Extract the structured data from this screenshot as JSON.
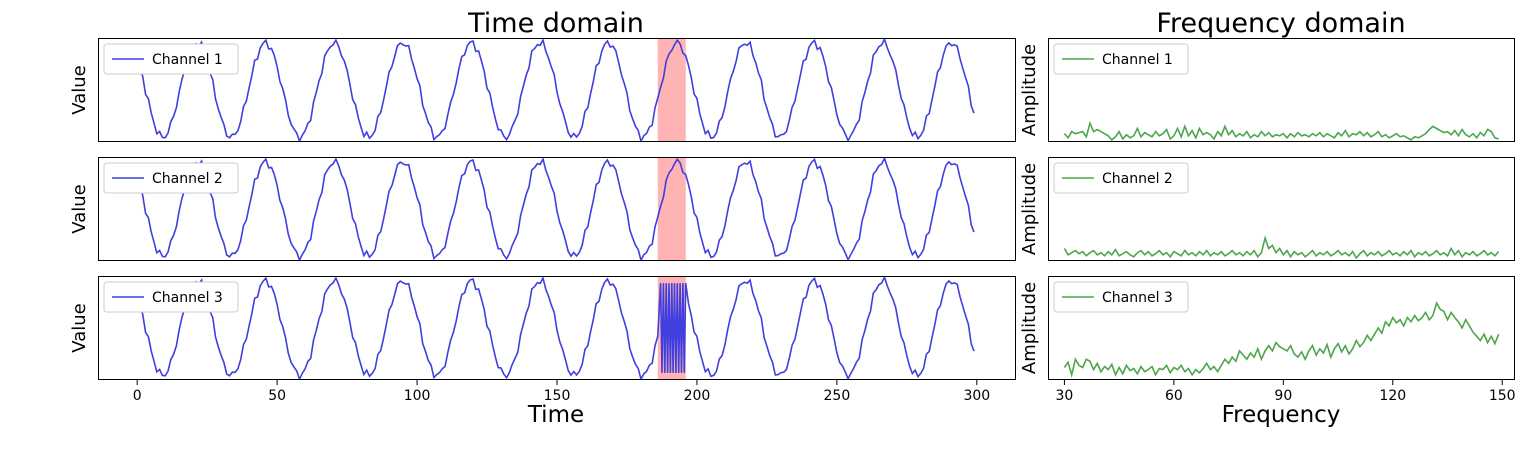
{
  "colors": {
    "time_series": "#3f3fe0",
    "freq_series": "#4ca64c",
    "anomaly_band": "#ff9999"
  },
  "chart_data": [
    {
      "type": "line",
      "panel": "time",
      "title": "Time domain",
      "xlabel": "",
      "ylabel": "Value",
      "xlim": [
        -14,
        314
      ],
      "ylim": [
        -1.1,
        1.1
      ],
      "legend": "top-left",
      "highlight_range": [
        186,
        196
      ],
      "series": [
        {
          "name": "Channel 1",
          "generator": {
            "period": 24.5,
            "amplitude": 1.0,
            "x_end": 299,
            "anomaly": "smooth"
          }
        }
      ]
    },
    {
      "type": "line",
      "panel": "time",
      "title": "",
      "xlabel": "",
      "ylabel": "Value",
      "xlim": [
        -14,
        314
      ],
      "ylim": [
        -1.1,
        1.1
      ],
      "legend": "top-left",
      "highlight_range": [
        186,
        196
      ],
      "series": [
        {
          "name": "Channel 2",
          "generator": {
            "period": 24.5,
            "amplitude": 1.0,
            "x_end": 299,
            "anomaly": "smooth"
          }
        }
      ]
    },
    {
      "type": "line",
      "panel": "time",
      "title": "",
      "xlabel": "Time",
      "ylabel": "Value",
      "xlim": [
        -14,
        314
      ],
      "ylim": [
        -1.1,
        1.1
      ],
      "xticks": [
        0,
        50,
        100,
        150,
        200,
        250,
        300
      ],
      "legend": "top-left",
      "highlight_range": [
        186,
        196
      ],
      "series": [
        {
          "name": "Channel 3",
          "generator": {
            "period": 24.5,
            "amplitude": 1.0,
            "x_end": 299,
            "anomaly": "high-frequency"
          }
        }
      ]
    },
    {
      "type": "line",
      "panel": "freq",
      "title": "Frequency domain",
      "xlabel": "",
      "ylabel": "Amplitude",
      "xlim": [
        25.5,
        153.5
      ],
      "ylim": [
        0,
        1
      ],
      "legend": "top-left",
      "series": [
        {
          "name": "Channel 1",
          "x_start": 30,
          "x_end": 149,
          "values": [
            0.08,
            0.04,
            0.1,
            0.08,
            0.09,
            0.1,
            0.05,
            0.18,
            0.1,
            0.12,
            0.1,
            0.08,
            0.06,
            0.02,
            0.05,
            0.1,
            0.03,
            0.07,
            0.04,
            0.06,
            0.13,
            0.05,
            0.09,
            0.07,
            0.05,
            0.1,
            0.06,
            0.08,
            0.12,
            0.03,
            0.06,
            0.13,
            0.05,
            0.15,
            0.06,
            0.11,
            0.04,
            0.13,
            0.07,
            0.09,
            0.07,
            0.03,
            0.1,
            0.06,
            0.15,
            0.07,
            0.11,
            0.05,
            0.08,
            0.06,
            0.1,
            0.04,
            0.07,
            0.05,
            0.1,
            0.06,
            0.09,
            0.05,
            0.07,
            0.06,
            0.08,
            0.04,
            0.08,
            0.05,
            0.09,
            0.06,
            0.07,
            0.05,
            0.08,
            0.06,
            0.09,
            0.05,
            0.08,
            0.06,
            0.04,
            0.09,
            0.06,
            0.11,
            0.05,
            0.08,
            0.07,
            0.1,
            0.06,
            0.09,
            0.05,
            0.07,
            0.1,
            0.05,
            0.07,
            0.04,
            0.06,
            0.08,
            0.05,
            0.06,
            0.04,
            0.02,
            0.05,
            0.04,
            0.06,
            0.08,
            0.12,
            0.15,
            0.13,
            0.11,
            0.09,
            0.1,
            0.07,
            0.11,
            0.06,
            0.12,
            0.07,
            0.05,
            0.08,
            0.04,
            0.09,
            0.06,
            0.12,
            0.1,
            0.04,
            0.03
          ]
        }
      ]
    },
    {
      "type": "line",
      "panel": "freq",
      "title": "",
      "xlabel": "",
      "ylabel": "Amplitude",
      "xlim": [
        25.5,
        153.5
      ],
      "ylim": [
        0,
        1
      ],
      "legend": "top-left",
      "series": [
        {
          "name": "Channel 2",
          "x_start": 30,
          "x_end": 149,
          "values": [
            0.12,
            0.06,
            0.08,
            0.1,
            0.07,
            0.09,
            0.05,
            0.08,
            0.1,
            0.06,
            0.08,
            0.05,
            0.09,
            0.06,
            0.11,
            0.05,
            0.07,
            0.09,
            0.06,
            0.04,
            0.08,
            0.1,
            0.06,
            0.09,
            0.05,
            0.07,
            0.1,
            0.06,
            0.08,
            0.04,
            0.09,
            0.07,
            0.05,
            0.1,
            0.06,
            0.08,
            0.05,
            0.09,
            0.06,
            0.1,
            0.05,
            0.08,
            0.06,
            0.09,
            0.05,
            0.07,
            0.1,
            0.06,
            0.08,
            0.05,
            0.09,
            0.06,
            0.1,
            0.04,
            0.08,
            0.22,
            0.12,
            0.15,
            0.08,
            0.12,
            0.06,
            0.1,
            0.04,
            0.09,
            0.06,
            0.08,
            0.04,
            0.07,
            0.1,
            0.05,
            0.08,
            0.06,
            0.09,
            0.05,
            0.07,
            0.1,
            0.06,
            0.08,
            0.05,
            0.09,
            0.03,
            0.07,
            0.1,
            0.05,
            0.08,
            0.06,
            0.09,
            0.05,
            0.07,
            0.1,
            0.06,
            0.08,
            0.05,
            0.09,
            0.06,
            0.1,
            0.04,
            0.08,
            0.06,
            0.09,
            0.05,
            0.07,
            0.1,
            0.06,
            0.08,
            0.05,
            0.12,
            0.06,
            0.1,
            0.04,
            0.08,
            0.06,
            0.09,
            0.05,
            0.07,
            0.1,
            0.06,
            0.08,
            0.05,
            0.09
          ]
        }
      ]
    },
    {
      "type": "line",
      "panel": "freq",
      "title": "",
      "xlabel": "Frequency",
      "ylabel": "Amplitude",
      "xlim": [
        25.5,
        153.5
      ],
      "ylim": [
        0,
        1
      ],
      "xticks": [
        30,
        60,
        90,
        120,
        150
      ],
      "legend": "top-left",
      "series": [
        {
          "name": "Channel 3",
          "x_start": 30,
          "x_end": 149,
          "values": [
            0.12,
            0.17,
            0.05,
            0.2,
            0.14,
            0.12,
            0.2,
            0.18,
            0.1,
            0.16,
            0.08,
            0.13,
            0.1,
            0.15,
            0.05,
            0.12,
            0.06,
            0.14,
            0.09,
            0.11,
            0.06,
            0.13,
            0.08,
            0.1,
            0.13,
            0.05,
            0.11,
            0.1,
            0.14,
            0.07,
            0.12,
            0.1,
            0.14,
            0.08,
            0.11,
            0.05,
            0.1,
            0.07,
            0.11,
            0.16,
            0.1,
            0.13,
            0.08,
            0.14,
            0.2,
            0.16,
            0.22,
            0.18,
            0.28,
            0.24,
            0.2,
            0.26,
            0.22,
            0.3,
            0.2,
            0.28,
            0.33,
            0.28,
            0.36,
            0.32,
            0.3,
            0.28,
            0.33,
            0.25,
            0.22,
            0.27,
            0.2,
            0.28,
            0.33,
            0.24,
            0.3,
            0.26,
            0.34,
            0.22,
            0.3,
            0.35,
            0.27,
            0.33,
            0.25,
            0.3,
            0.38,
            0.32,
            0.36,
            0.43,
            0.38,
            0.44,
            0.5,
            0.45,
            0.56,
            0.52,
            0.6,
            0.55,
            0.58,
            0.52,
            0.6,
            0.56,
            0.62,
            0.57,
            0.6,
            0.65,
            0.58,
            0.62,
            0.74,
            0.68,
            0.66,
            0.58,
            0.65,
            0.6,
            0.56,
            0.5,
            0.58,
            0.52,
            0.46,
            0.42,
            0.38,
            0.44,
            0.36,
            0.42,
            0.35,
            0.44
          ]
        }
      ]
    }
  ]
}
